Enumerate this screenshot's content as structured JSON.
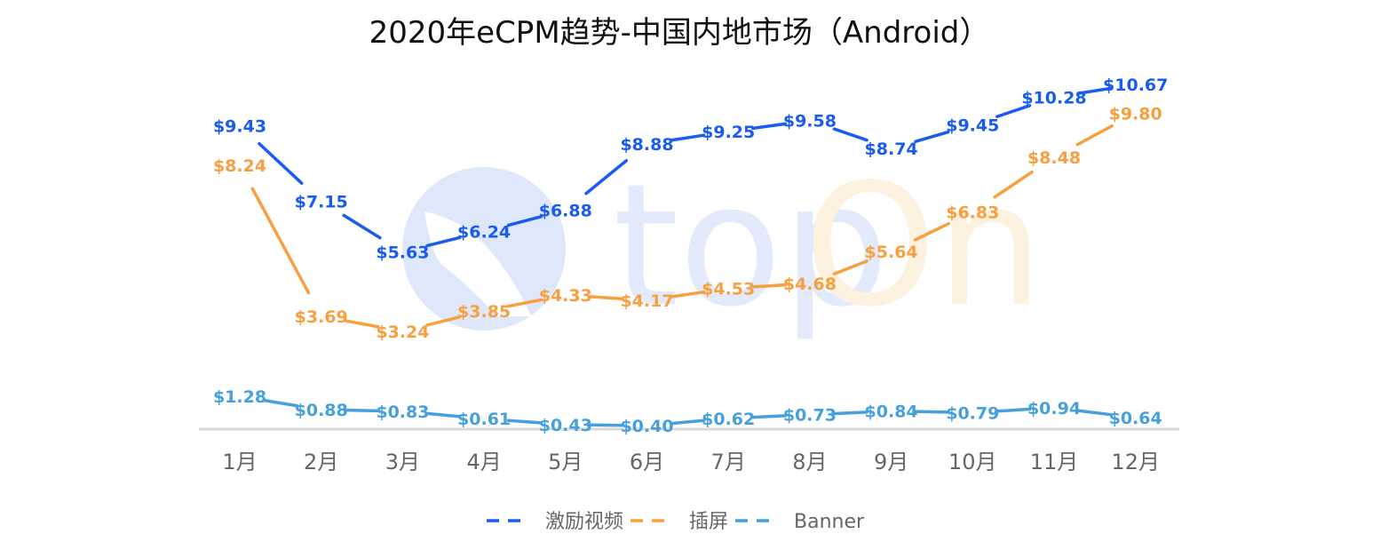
{
  "chart_data": {
    "type": "line",
    "title": "2020年eCPM趋势-中国内地市场（Android）",
    "xlabel": "",
    "ylabel": "",
    "categories": [
      "1月",
      "2月",
      "3月",
      "4月",
      "5月",
      "6月",
      "7月",
      "8月",
      "9月",
      "10月",
      "11月",
      "12月"
    ],
    "series": [
      {
        "name": "激励视频",
        "color": "#1a5cf0",
        "values": [
          9.43,
          7.15,
          5.63,
          6.24,
          6.88,
          8.88,
          9.25,
          9.58,
          8.74,
          9.45,
          10.28,
          10.67
        ],
        "labels": [
          "$9.43",
          "$7.15",
          "$5.63",
          "$6.24",
          "$6.88",
          "$8.88",
          "$9.25",
          "$9.58",
          "$8.74",
          "$9.45",
          "$10.28",
          "$10.67"
        ]
      },
      {
        "name": "插屏",
        "color": "#f7a040",
        "values": [
          8.24,
          3.69,
          3.24,
          3.85,
          4.33,
          4.17,
          4.53,
          4.68,
          5.64,
          6.83,
          8.48,
          9.8
        ],
        "labels": [
          "$8.24",
          "$3.69",
          "$3.24",
          "$3.85",
          "$4.33",
          "$4.17",
          "$4.53",
          "$4.68",
          "$5.64",
          "$6.83",
          "$8.48",
          "$9.80"
        ]
      },
      {
        "name": "Banner",
        "color": "#46a0dc",
        "values": [
          1.28,
          0.88,
          0.83,
          0.61,
          0.43,
          0.4,
          0.62,
          0.73,
          0.84,
          0.79,
          0.94,
          0.64
        ],
        "labels": [
          "$1.28",
          "$0.88",
          "$0.83",
          "$0.61",
          "$0.43",
          "$0.40",
          "$0.62",
          "$0.73",
          "$0.84",
          "$0.79",
          "$0.94",
          "$0.64"
        ]
      }
    ],
    "ylim": [
      0,
      11.6
    ],
    "grid": false,
    "legend": "bottom-center",
    "line_style": "dashed",
    "watermark_text": "topOn"
  }
}
